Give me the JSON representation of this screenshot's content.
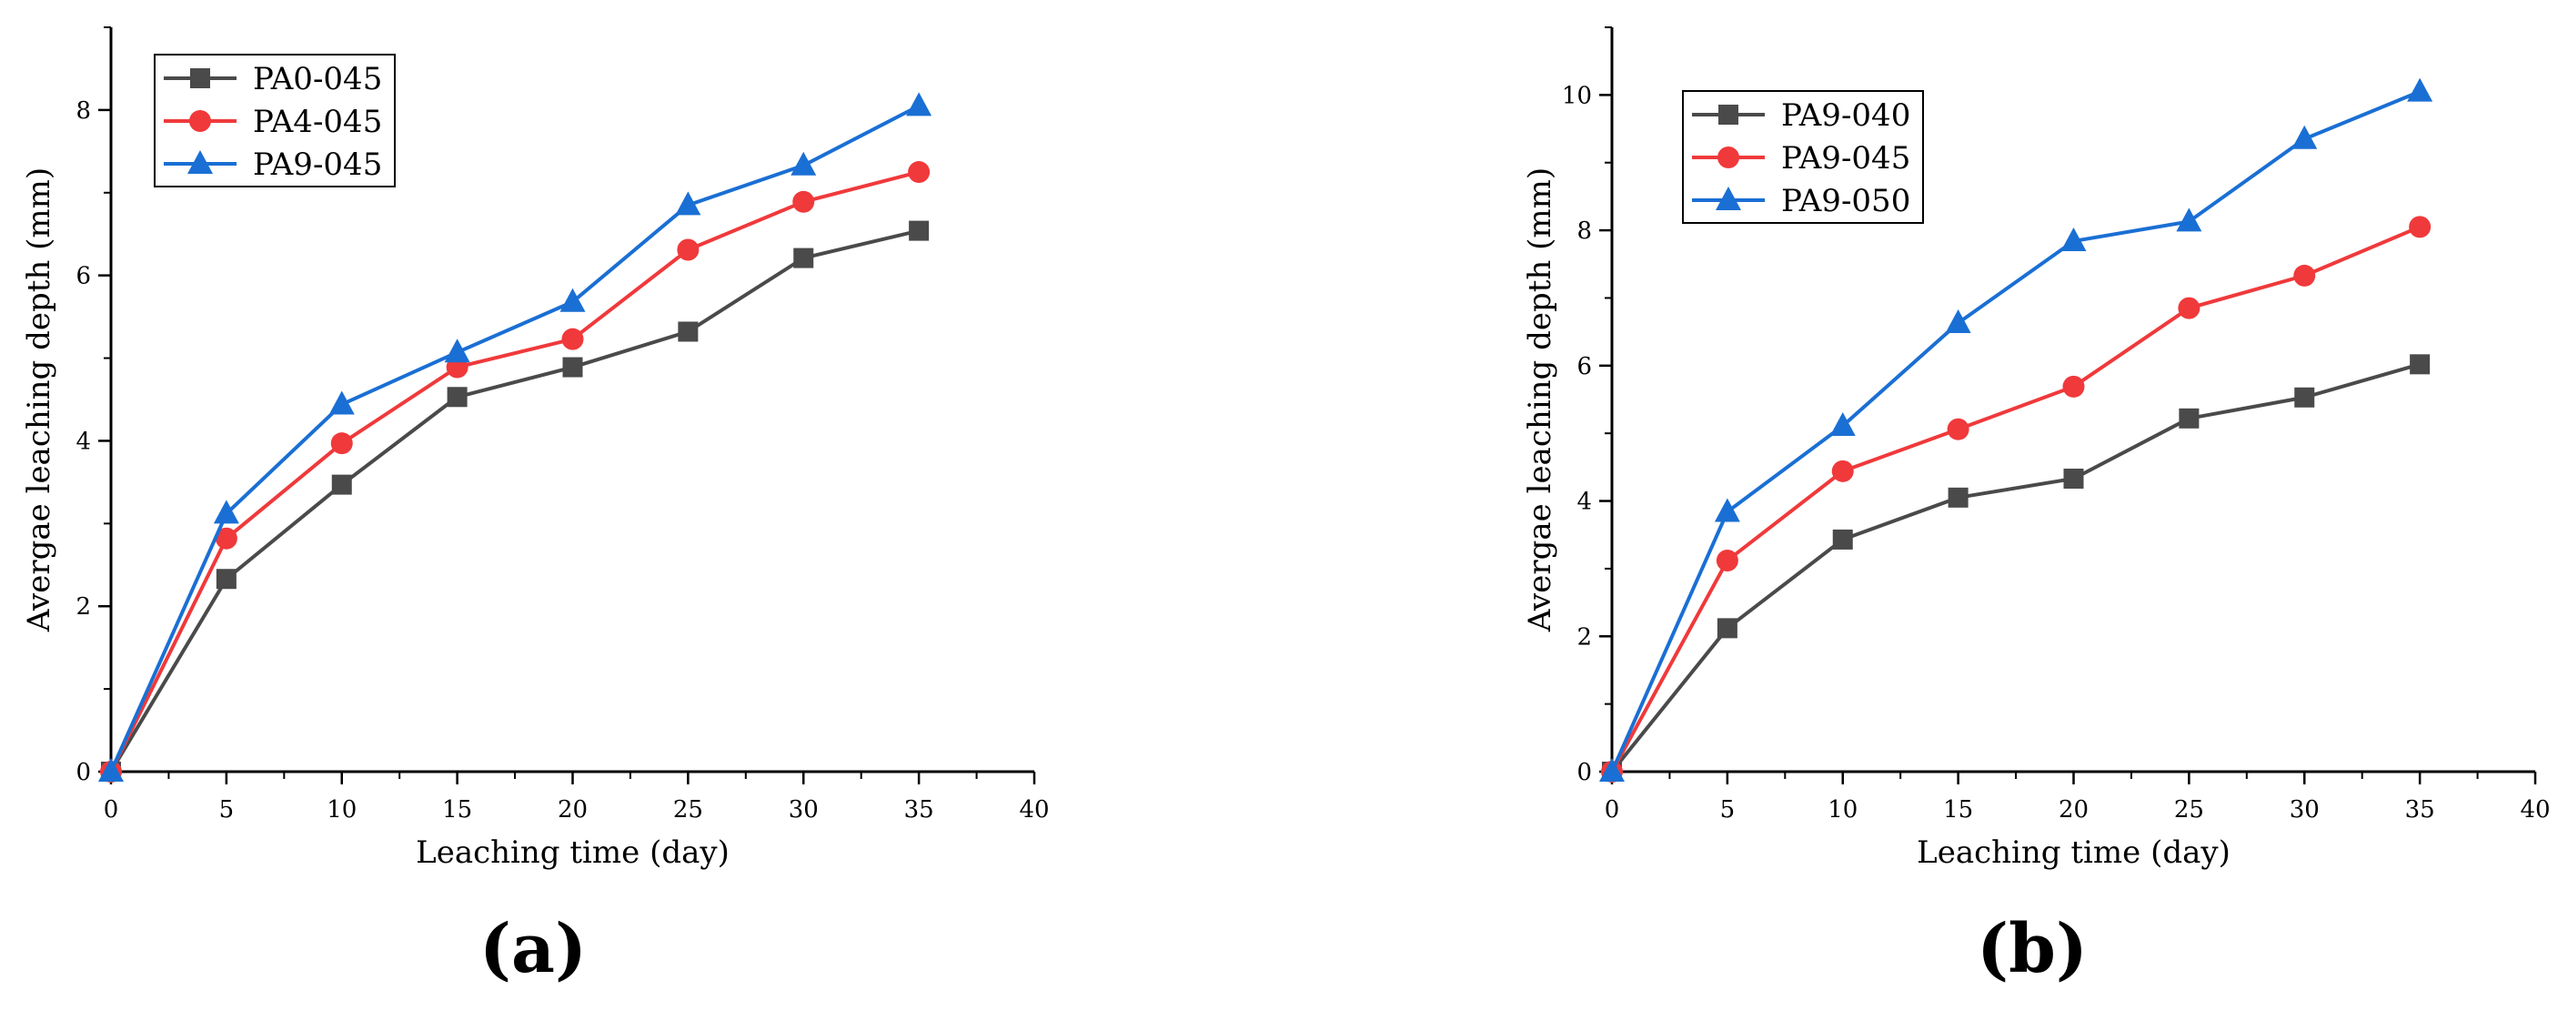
{
  "chart_data": [
    {
      "type": "line",
      "panel_label": "(a)",
      "xlabel": "Leaching time (day)",
      "ylabel": "Avergae leaching depth (mm)",
      "xlim": [
        0,
        40
      ],
      "ylim": [
        0,
        9
      ],
      "xticks": [
        0,
        5,
        10,
        15,
        20,
        25,
        30,
        35,
        40
      ],
      "yticks": [
        0,
        2,
        4,
        6,
        8
      ],
      "legend_position": "top-left",
      "x": [
        0,
        5,
        10,
        15,
        20,
        25,
        30,
        35
      ],
      "series": [
        {
          "name": "PA0-045",
          "color": "#4a4a4a",
          "marker": "square",
          "values": [
            0,
            2.33,
            3.47,
            4.53,
            4.89,
            5.32,
            6.21,
            6.54
          ]
        },
        {
          "name": "PA4-045",
          "color": "#f0393b",
          "marker": "circle",
          "values": [
            0,
            2.82,
            3.97,
            4.89,
            5.23,
            6.31,
            6.89,
            7.25
          ]
        },
        {
          "name": "PA9-045",
          "color": "#1a6fd4",
          "marker": "triangle",
          "values": [
            0,
            3.12,
            4.44,
            5.07,
            5.68,
            6.85,
            7.33,
            8.05
          ]
        }
      ]
    },
    {
      "type": "line",
      "panel_label": "(b)",
      "xlabel": "Leaching time (day)",
      "ylabel": "Avergae leaching depth (mm)",
      "xlim": [
        0,
        40
      ],
      "ylim": [
        0,
        11
      ],
      "xticks": [
        0,
        5,
        10,
        15,
        20,
        25,
        30,
        35,
        40
      ],
      "yticks": [
        0,
        2,
        4,
        6,
        8,
        10
      ],
      "legend_position": "top-left",
      "x": [
        0,
        5,
        10,
        15,
        20,
        25,
        30,
        35
      ],
      "series": [
        {
          "name": "PA9-040",
          "color": "#4a4a4a",
          "marker": "square",
          "values": [
            0,
            2.12,
            3.43,
            4.05,
            4.33,
            5.22,
            5.53,
            6.02
          ]
        },
        {
          "name": "PA9-045",
          "color": "#f0393b",
          "marker": "circle",
          "values": [
            0,
            3.12,
            4.44,
            5.06,
            5.69,
            6.85,
            7.33,
            8.05
          ]
        },
        {
          "name": "PA9-050",
          "color": "#1a6fd4",
          "marker": "triangle",
          "values": [
            0,
            3.84,
            5.11,
            6.63,
            7.84,
            8.13,
            9.35,
            10.05
          ]
        }
      ]
    }
  ]
}
